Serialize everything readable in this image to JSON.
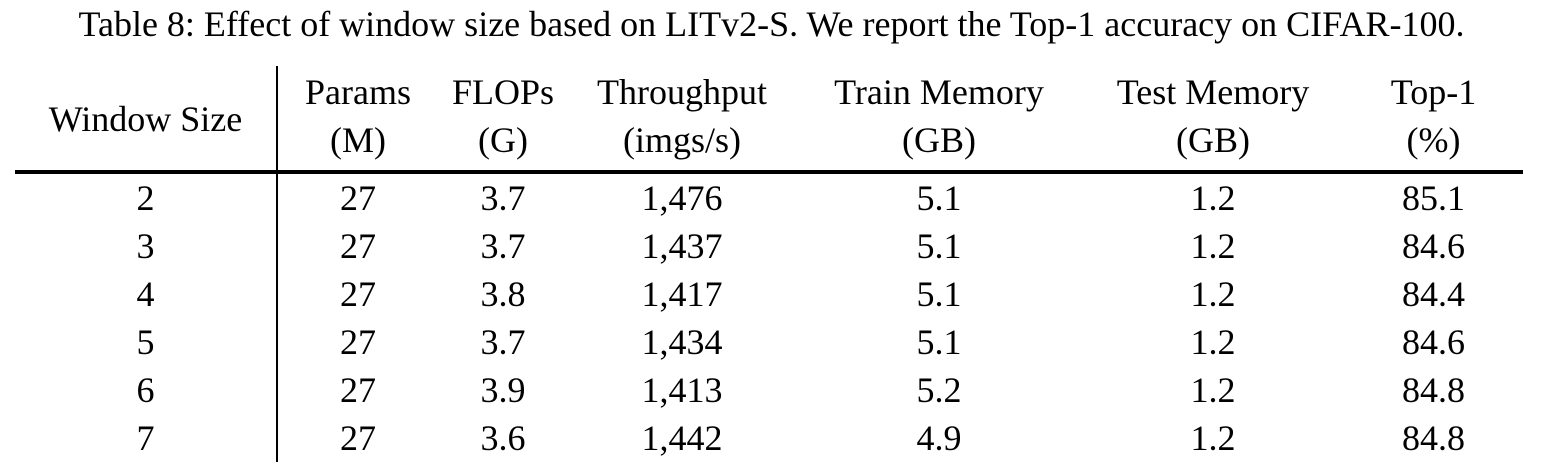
{
  "caption": "Table 8: Effect of window size based on LITv2-S. We report the Top-1 accuracy on CIFAR-100.",
  "table": {
    "headers": [
      {
        "line1": "Window Size",
        "line2": ""
      },
      {
        "line1": "Params",
        "line2": "(M)"
      },
      {
        "line1": "FLOPs",
        "line2": "(G)"
      },
      {
        "line1": "Throughput",
        "line2": "(imgs/s)"
      },
      {
        "line1": "Train Memory",
        "line2": "(GB)"
      },
      {
        "line1": "Test Memory",
        "line2": "(GB)"
      },
      {
        "line1": "Top-1",
        "line2": "(%)"
      }
    ],
    "rows": [
      [
        "2",
        "27",
        "3.7",
        "1,476",
        "5.1",
        "1.2",
        "85.1"
      ],
      [
        "3",
        "27",
        "3.7",
        "1,437",
        "5.1",
        "1.2",
        "84.6"
      ],
      [
        "4",
        "27",
        "3.8",
        "1,417",
        "5.1",
        "1.2",
        "84.4"
      ],
      [
        "5",
        "27",
        "3.7",
        "1,434",
        "5.1",
        "1.2",
        "84.6"
      ],
      [
        "6",
        "27",
        "3.9",
        "1,413",
        "5.2",
        "1.2",
        "84.8"
      ],
      [
        "7",
        "27",
        "3.6",
        "1,442",
        "4.9",
        "1.2",
        "84.8"
      ]
    ]
  }
}
